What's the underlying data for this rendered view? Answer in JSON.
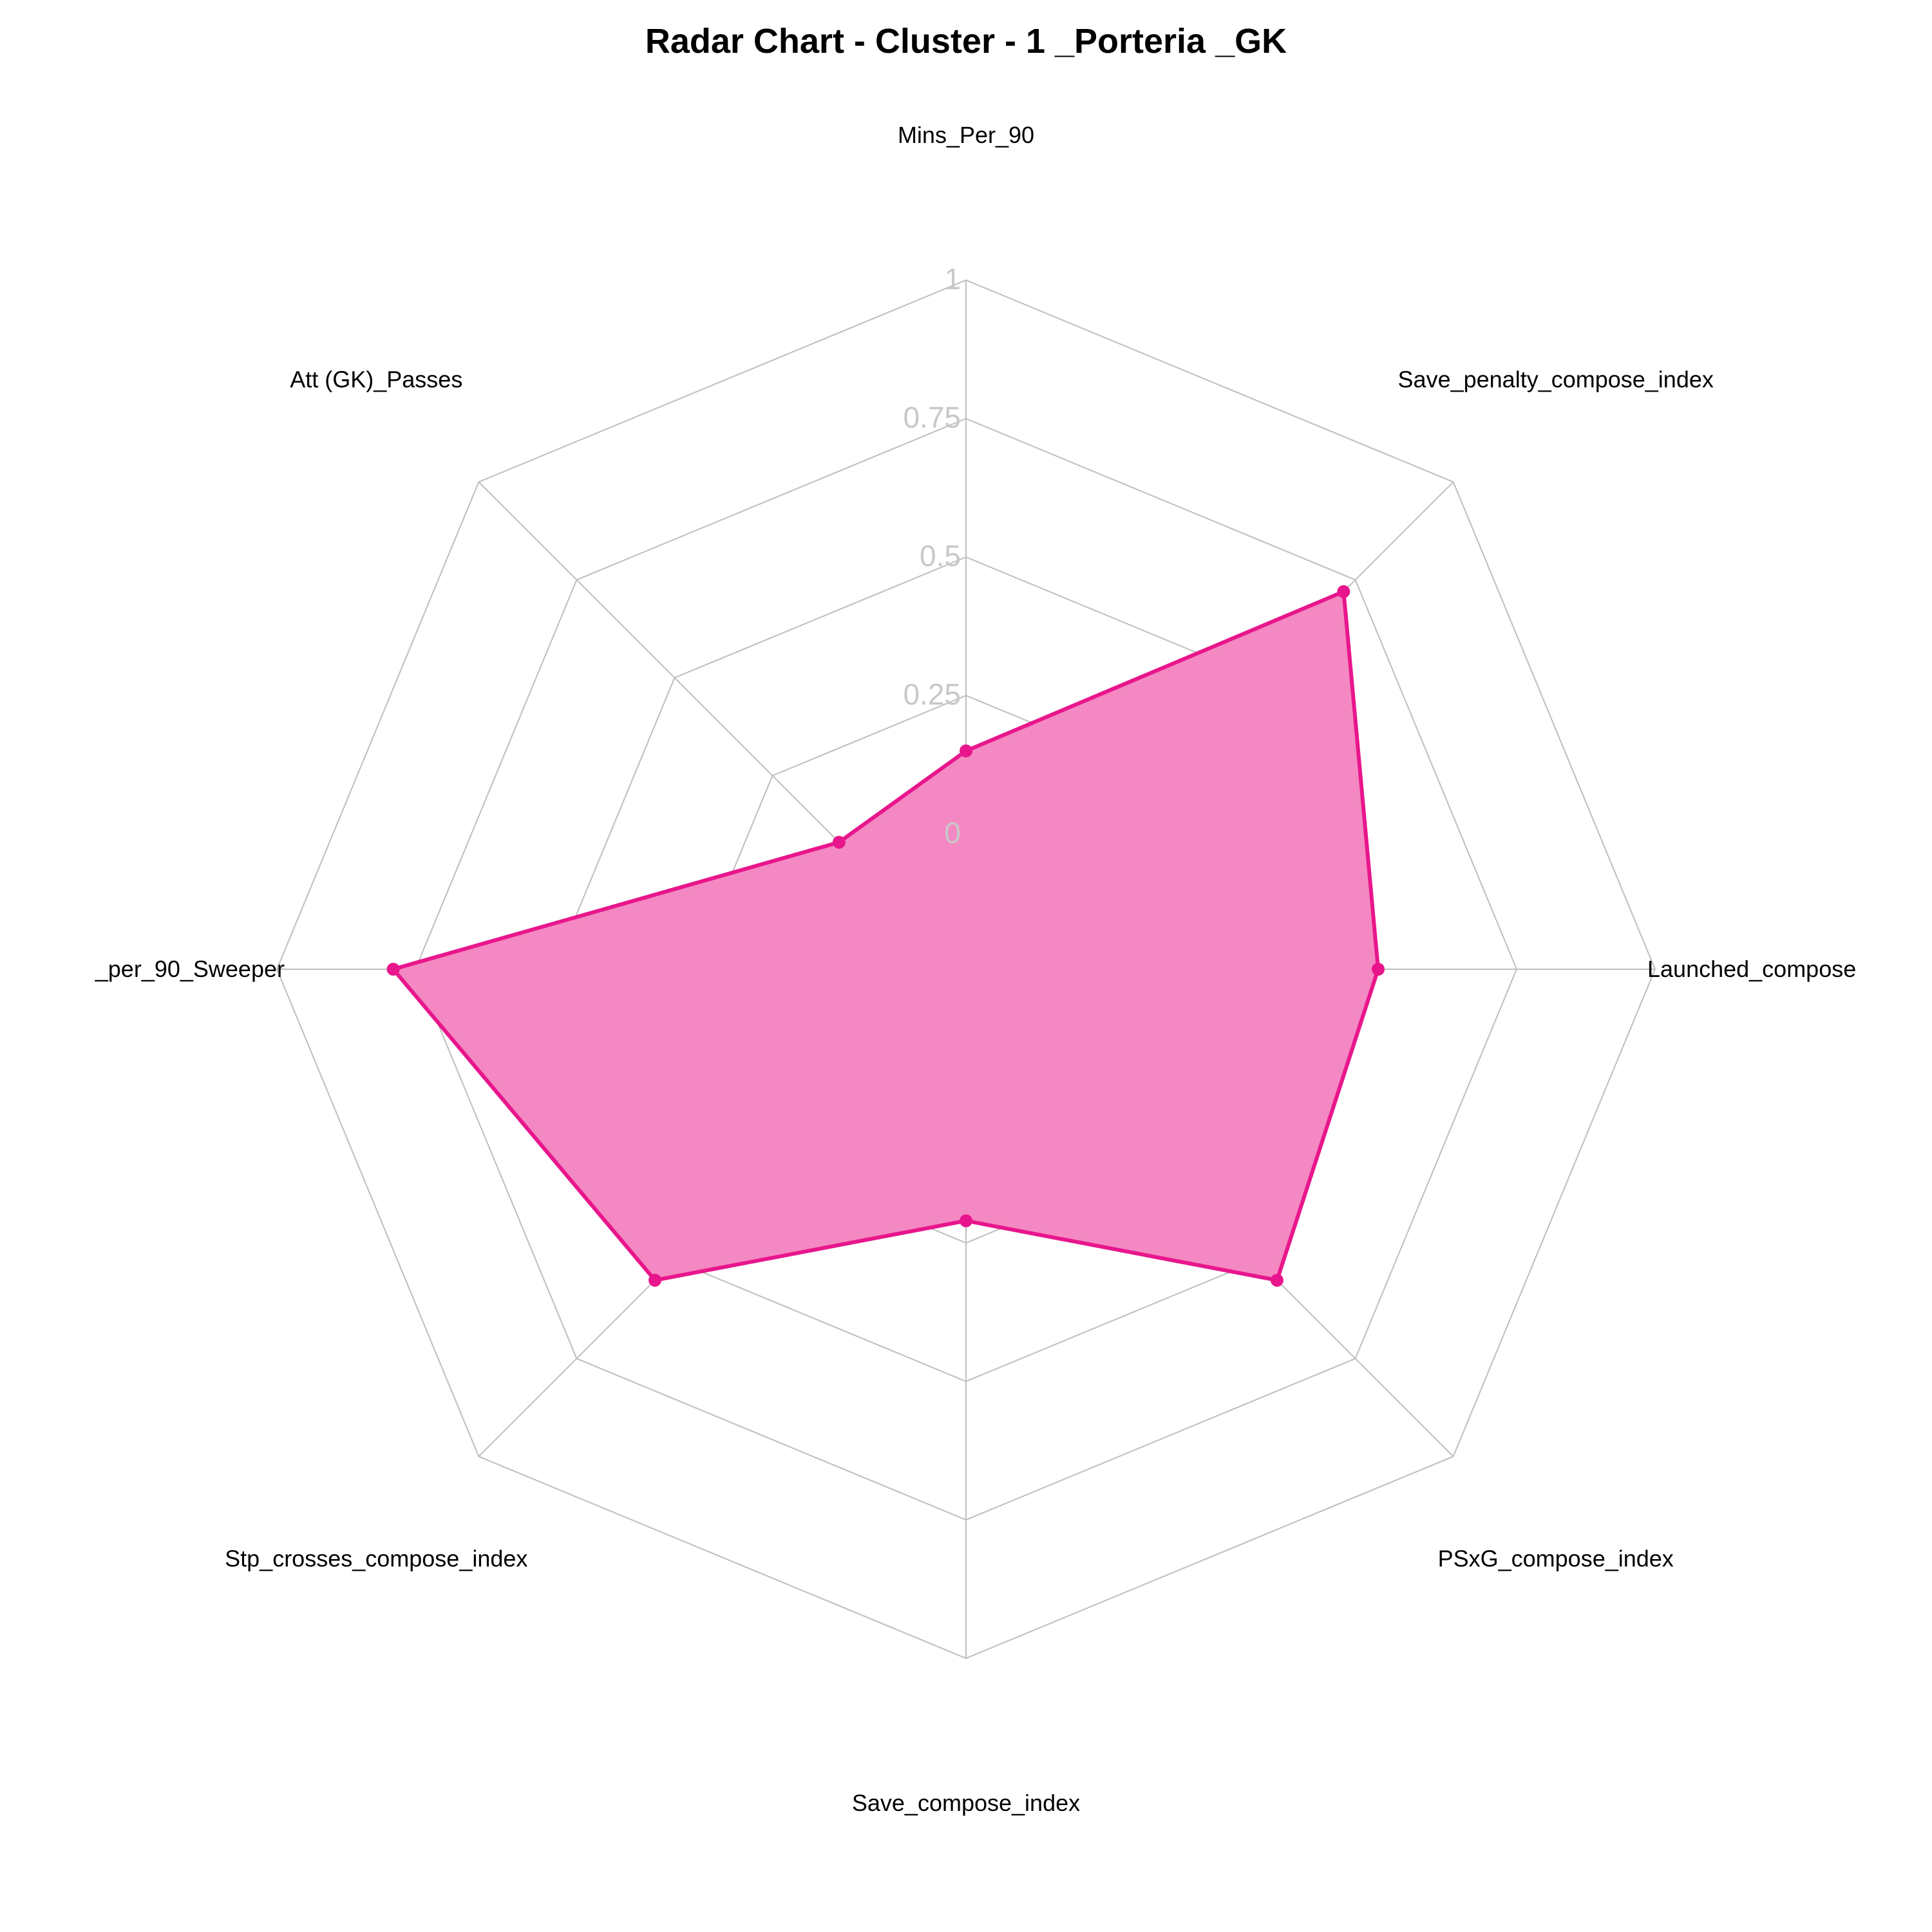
{
  "chart_data": {
    "type": "radar",
    "title": "Radar Chart - Cluster - 1 _Porteria _GK",
    "axes": [
      "Mins_Per_90",
      "Save_penalty_compose_index",
      "Launched_compose",
      "PSxG_compose_index",
      "Save_compose_index",
      "Stp_crosses_compose_index",
      "_per_90_Sweeper",
      "Att (GK)_Passes"
    ],
    "range": [
      0,
      1
    ],
    "ticks": [
      "0",
      "0.25",
      "0.5",
      "0.75",
      "1"
    ],
    "series": [
      {
        "values": [
          0.15,
          0.72,
          0.5,
          0.55,
          0.21,
          0.55,
          0.79,
          0.08
        ]
      }
    ],
    "colors": {
      "series": "#e8168c",
      "fill": "#f488c2",
      "grid": "#bebebe",
      "tick": "#c8c8c8"
    }
  }
}
